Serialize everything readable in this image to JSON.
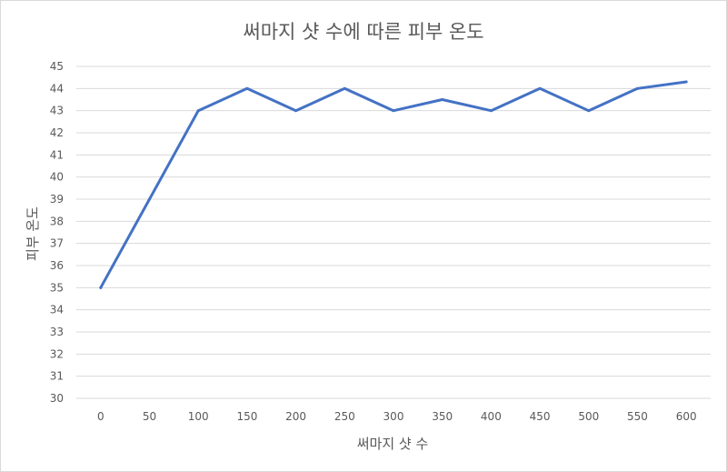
{
  "chart_data": {
    "type": "line",
    "title": "써마지 샷 수에 따른 피부 온도",
    "xlabel": "써마지 샷 수",
    "ylabel": "피부 온도",
    "categories": [
      "0",
      "50",
      "100",
      "150",
      "200",
      "250",
      "300",
      "350",
      "400",
      "450",
      "500",
      "550",
      "600"
    ],
    "series": [
      {
        "values": [
          35,
          39,
          43,
          44,
          43,
          44,
          43,
          43.5,
          43,
          44,
          43,
          44,
          44.3
        ]
      }
    ],
    "ylim": [
      30,
      45
    ],
    "yticks": [
      "30",
      "31",
      "32",
      "33",
      "34",
      "35",
      "36",
      "37",
      "38",
      "39",
      "40",
      "41",
      "42",
      "43",
      "44",
      "45"
    ],
    "grid": true,
    "legend": "none",
    "line_color": "#4472c4",
    "grid_color": "#d9d9d9"
  }
}
